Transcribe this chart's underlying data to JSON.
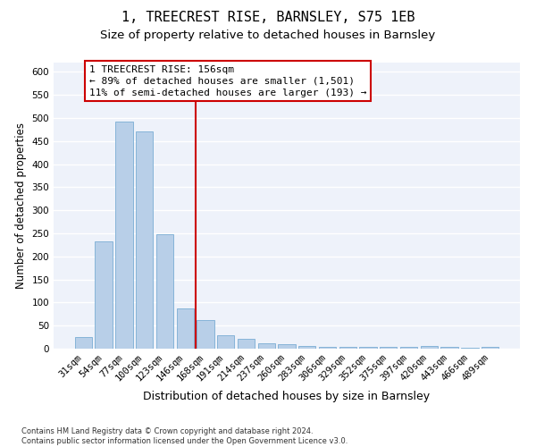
{
  "title1": "1, TREECREST RISE, BARNSLEY, S75 1EB",
  "title2": "Size of property relative to detached houses in Barnsley",
  "xlabel": "Distribution of detached houses by size in Barnsley",
  "ylabel": "Number of detached properties",
  "categories": [
    "31sqm",
    "54sqm",
    "77sqm",
    "100sqm",
    "123sqm",
    "146sqm",
    "168sqm",
    "191sqm",
    "214sqm",
    "237sqm",
    "260sqm",
    "283sqm",
    "306sqm",
    "329sqm",
    "352sqm",
    "375sqm",
    "397sqm",
    "420sqm",
    "443sqm",
    "466sqm",
    "489sqm"
  ],
  "values": [
    25,
    232,
    492,
    470,
    248,
    88,
    62,
    30,
    21,
    11,
    10,
    5,
    3,
    3,
    3,
    3,
    3,
    5,
    3,
    1,
    3
  ],
  "bar_color": "#b8cfe8",
  "bar_edge_color": "#7aadd4",
  "background_color": "#eef2fa",
  "grid_color": "#ffffff",
  "vline_x": 5.5,
  "vline_color": "#cc0000",
  "annotation_text": "1 TREECREST RISE: 156sqm\n← 89% of detached houses are smaller (1,501)\n11% of semi-detached houses are larger (193) →",
  "annotation_box_color": "#cc0000",
  "ylim": [
    0,
    620
  ],
  "yticks": [
    0,
    50,
    100,
    150,
    200,
    250,
    300,
    350,
    400,
    450,
    500,
    550,
    600
  ],
  "footer": "Contains HM Land Registry data © Crown copyright and database right 2024.\nContains public sector information licensed under the Open Government Licence v3.0.",
  "title1_fontsize": 11,
  "title2_fontsize": 9.5,
  "xlabel_fontsize": 9,
  "ylabel_fontsize": 8.5,
  "tick_fontsize": 7.5,
  "annotation_fontsize": 8,
  "footer_fontsize": 6
}
